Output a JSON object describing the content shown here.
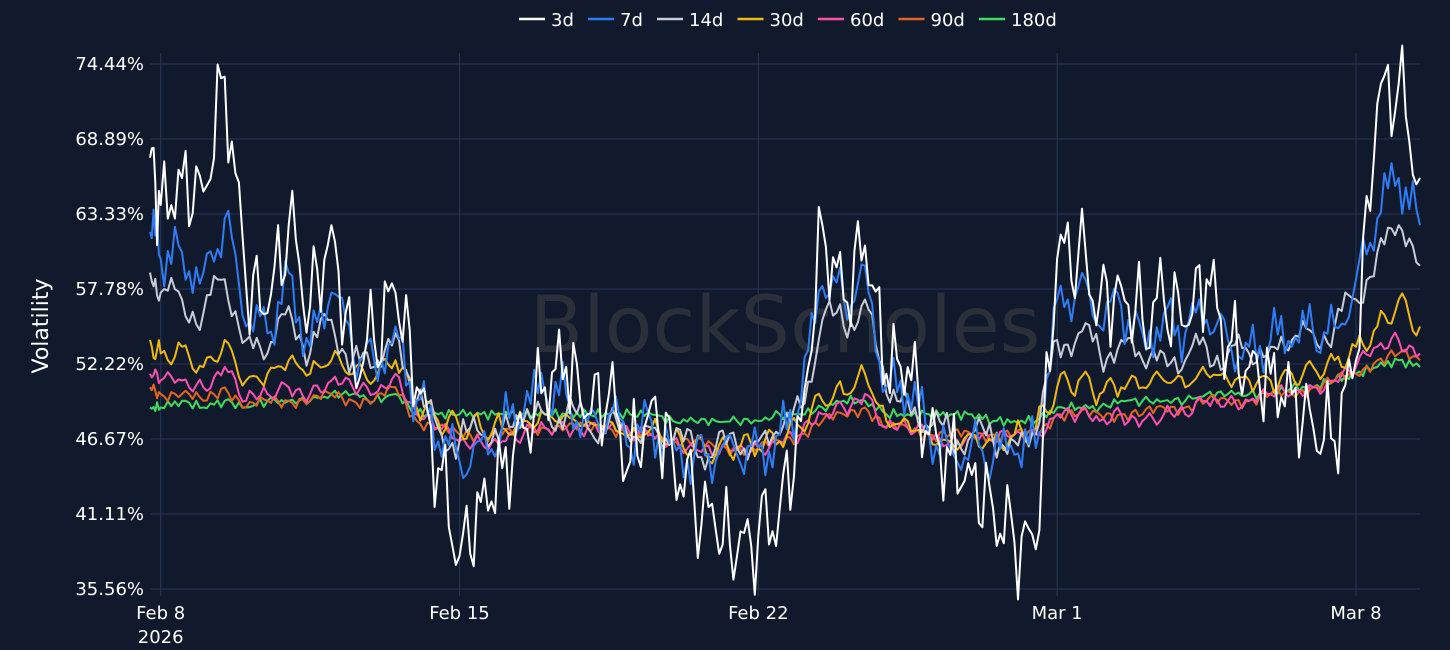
{
  "watermark": "BlockScholes",
  "chart_data": {
    "type": "line",
    "ylabel": "Volatility",
    "yticks": [
      "35.56%",
      "41.11%",
      "46.67%",
      "52.22%",
      "57.78%",
      "63.33%",
      "68.89%",
      "74.44%"
    ],
    "ylim": [
      35.56,
      74.44
    ],
    "x_range": [
      "2026-02-07T18:00",
      "2026-03-09T12:00"
    ],
    "xticks": [
      {
        "date": "2026-02-08",
        "label": "Feb 8",
        "sub": "2026"
      },
      {
        "date": "2026-02-15",
        "label": "Feb 15",
        "sub": ""
      },
      {
        "date": "2026-02-22",
        "label": "Feb 22",
        "sub": ""
      },
      {
        "date": "2026-03-01",
        "label": "Mar 1",
        "sub": ""
      },
      {
        "date": "2026-03-08",
        "label": "Mar 8",
        "sub": ""
      }
    ],
    "grid": true,
    "legend_position": "top-center",
    "dates": [
      "2026-02-07T18:00",
      "2026-02-08",
      "2026-02-08T12:00",
      "2026-02-09",
      "2026-02-09T12:00",
      "2026-02-10",
      "2026-02-10T12:00",
      "2026-02-11",
      "2026-02-11T12:00",
      "2026-02-12",
      "2026-02-12T12:00",
      "2026-02-13",
      "2026-02-13T12:00",
      "2026-02-14",
      "2026-02-14T12:00",
      "2026-02-15",
      "2026-02-15T12:00",
      "2026-02-16",
      "2026-02-16T12:00",
      "2026-02-17",
      "2026-02-17T12:00",
      "2026-02-18",
      "2026-02-18T12:00",
      "2026-02-19",
      "2026-02-19T12:00",
      "2026-02-20",
      "2026-02-20T12:00",
      "2026-02-21",
      "2026-02-21T12:00",
      "2026-02-22",
      "2026-02-22T12:00",
      "2026-02-23",
      "2026-02-23T12:00",
      "2026-02-24",
      "2026-02-24T12:00",
      "2026-02-25",
      "2026-02-25T12:00",
      "2026-02-26",
      "2026-02-26T12:00",
      "2026-02-27",
      "2026-02-27T12:00",
      "2026-02-28",
      "2026-02-28T12:00",
      "2026-03-01",
      "2026-03-01T12:00",
      "2026-03-02",
      "2026-03-02T12:00",
      "2026-03-03",
      "2026-03-03T12:00",
      "2026-03-04",
      "2026-03-04T12:00",
      "2026-03-05",
      "2026-03-05T12:00",
      "2026-03-06",
      "2026-03-06T12:00",
      "2026-03-07",
      "2026-03-07T12:00",
      "2026-03-08",
      "2026-03-08T12:00",
      "2026-03-09",
      "2026-03-09T12:00"
    ],
    "series": [
      {
        "name": "3d",
        "color": "#ffffff",
        "values": [
          67.5,
          64.0,
          66.0,
          65.0,
          73.5,
          58.0,
          56.0,
          62.5,
          56.5,
          62.5,
          52.5,
          54.0,
          57.5,
          50.5,
          44.5,
          38.0,
          42.0,
          44.5,
          47.5,
          50.5,
          52.0,
          48.5,
          50.0,
          45.0,
          49.5,
          45.5,
          42.0,
          40.0,
          38.0,
          39.5,
          41.5,
          48.0,
          62.5,
          57.0,
          61.0,
          51.5,
          52.0,
          47.0,
          45.5,
          44.0,
          41.5,
          39.0,
          38.5,
          60.0,
          60.5,
          57.0,
          58.0,
          55.5,
          57.0,
          55.0,
          58.5,
          53.5,
          52.0,
          51.5,
          50.0,
          47.5,
          46.5,
          52.5,
          71.5,
          73.0,
          66.0
        ]
      },
      {
        "name": "7d",
        "color": "#2f7df6",
        "values": [
          62.0,
          60.0,
          60.5,
          59.0,
          63.0,
          55.0,
          54.5,
          59.0,
          53.5,
          57.5,
          53.0,
          52.5,
          55.0,
          49.5,
          46.5,
          45.0,
          46.5,
          47.5,
          48.5,
          50.0,
          50.0,
          48.0,
          48.5,
          46.0,
          48.0,
          46.5,
          45.5,
          45.0,
          45.5,
          46.0,
          47.0,
          49.5,
          58.0,
          57.0,
          59.5,
          50.5,
          50.0,
          47.0,
          46.0,
          46.5,
          45.0,
          45.5,
          46.0,
          57.0,
          58.0,
          55.0,
          56.5,
          54.5,
          56.0,
          54.5,
          55.5,
          54.0,
          53.5,
          54.0,
          53.5,
          54.5,
          55.0,
          58.5,
          63.0,
          66.0,
          62.5
        ]
      },
      {
        "name": "14d",
        "color": "#c8ccd6",
        "values": [
          59.0,
          57.5,
          57.0,
          56.0,
          58.5,
          54.0,
          53.0,
          56.5,
          53.0,
          55.5,
          52.5,
          52.0,
          54.5,
          49.5,
          47.5,
          46.5,
          47.0,
          47.5,
          48.0,
          48.5,
          48.5,
          47.5,
          48.0,
          46.5,
          47.5,
          46.5,
          46.0,
          46.0,
          46.0,
          46.5,
          47.0,
          49.0,
          55.5,
          55.0,
          57.0,
          50.0,
          49.5,
          47.5,
          47.0,
          47.0,
          46.5,
          46.5,
          47.0,
          54.0,
          54.5,
          53.0,
          54.0,
          52.5,
          53.0,
          52.5,
          53.5,
          53.0,
          53.0,
          53.5,
          54.0,
          54.5,
          55.0,
          57.0,
          60.5,
          62.5,
          59.5
        ]
      },
      {
        "name": "30d",
        "color": "#f0b90b",
        "values": [
          54.0,
          53.0,
          53.5,
          52.0,
          54.0,
          51.0,
          51.5,
          52.5,
          51.5,
          52.5,
          51.5,
          51.0,
          52.5,
          49.0,
          48.0,
          47.5,
          47.5,
          47.5,
          48.0,
          48.5,
          48.5,
          48.0,
          48.0,
          47.0,
          47.5,
          46.5,
          46.0,
          45.5,
          46.0,
          46.0,
          46.5,
          47.5,
          49.5,
          50.0,
          51.5,
          48.0,
          48.0,
          47.0,
          46.5,
          47.0,
          46.5,
          47.0,
          47.5,
          50.5,
          51.0,
          50.0,
          50.5,
          50.5,
          51.0,
          50.5,
          51.5,
          51.0,
          51.0,
          51.0,
          51.5,
          52.0,
          52.5,
          53.5,
          55.0,
          57.0,
          55.0
        ]
      },
      {
        "name": "60d",
        "color": "#ff4fb2",
        "values": [
          51.5,
          51.0,
          51.0,
          50.5,
          52.0,
          49.5,
          50.0,
          50.5,
          50.0,
          51.0,
          50.5,
          50.0,
          51.5,
          48.5,
          47.5,
          46.5,
          46.5,
          46.5,
          47.0,
          47.5,
          47.5,
          47.5,
          47.5,
          47.0,
          47.0,
          46.5,
          46.0,
          45.5,
          46.0,
          46.0,
          46.5,
          47.0,
          48.5,
          49.0,
          50.0,
          47.5,
          47.5,
          47.0,
          46.5,
          47.0,
          46.5,
          47.0,
          47.0,
          48.5,
          48.5,
          48.0,
          48.5,
          48.0,
          48.5,
          48.5,
          49.5,
          49.5,
          49.5,
          50.0,
          50.0,
          50.5,
          51.0,
          52.0,
          53.5,
          54.0,
          53.0
        ]
      },
      {
        "name": "90d",
        "color": "#e5641f",
        "values": [
          50.5,
          50.0,
          50.0,
          49.5,
          50.5,
          49.0,
          49.5,
          49.5,
          49.5,
          50.0,
          49.5,
          49.5,
          50.5,
          48.0,
          47.5,
          47.0,
          47.0,
          47.0,
          47.5,
          47.5,
          47.5,
          47.5,
          47.5,
          47.0,
          47.0,
          46.5,
          46.5,
          46.0,
          46.0,
          46.0,
          46.5,
          47.0,
          48.0,
          48.5,
          49.0,
          47.5,
          47.5,
          47.0,
          47.0,
          47.0,
          47.0,
          47.0,
          47.0,
          48.5,
          48.5,
          48.5,
          48.5,
          48.5,
          49.0,
          49.0,
          49.5,
          49.5,
          49.5,
          50.0,
          50.0,
          50.5,
          51.0,
          51.5,
          52.5,
          53.0,
          52.5
        ]
      },
      {
        "name": "180d",
        "color": "#3ddc5c",
        "values": [
          49.0,
          49.0,
          49.5,
          49.0,
          49.5,
          49.0,
          49.5,
          49.5,
          49.5,
          50.0,
          50.0,
          49.5,
          50.0,
          48.5,
          48.5,
          48.5,
          48.5,
          48.5,
          48.5,
          48.5,
          48.5,
          48.5,
          48.5,
          48.5,
          48.5,
          48.0,
          48.0,
          48.0,
          48.0,
          48.0,
          48.5,
          48.5,
          49.0,
          49.5,
          49.5,
          48.5,
          48.5,
          48.5,
          48.5,
          48.5,
          48.0,
          48.0,
          48.0,
          49.0,
          49.0,
          49.0,
          49.5,
          49.5,
          49.5,
          49.5,
          50.0,
          50.0,
          50.0,
          50.0,
          50.5,
          50.5,
          51.0,
          51.5,
          52.0,
          52.5,
          52.0
        ]
      }
    ]
  }
}
